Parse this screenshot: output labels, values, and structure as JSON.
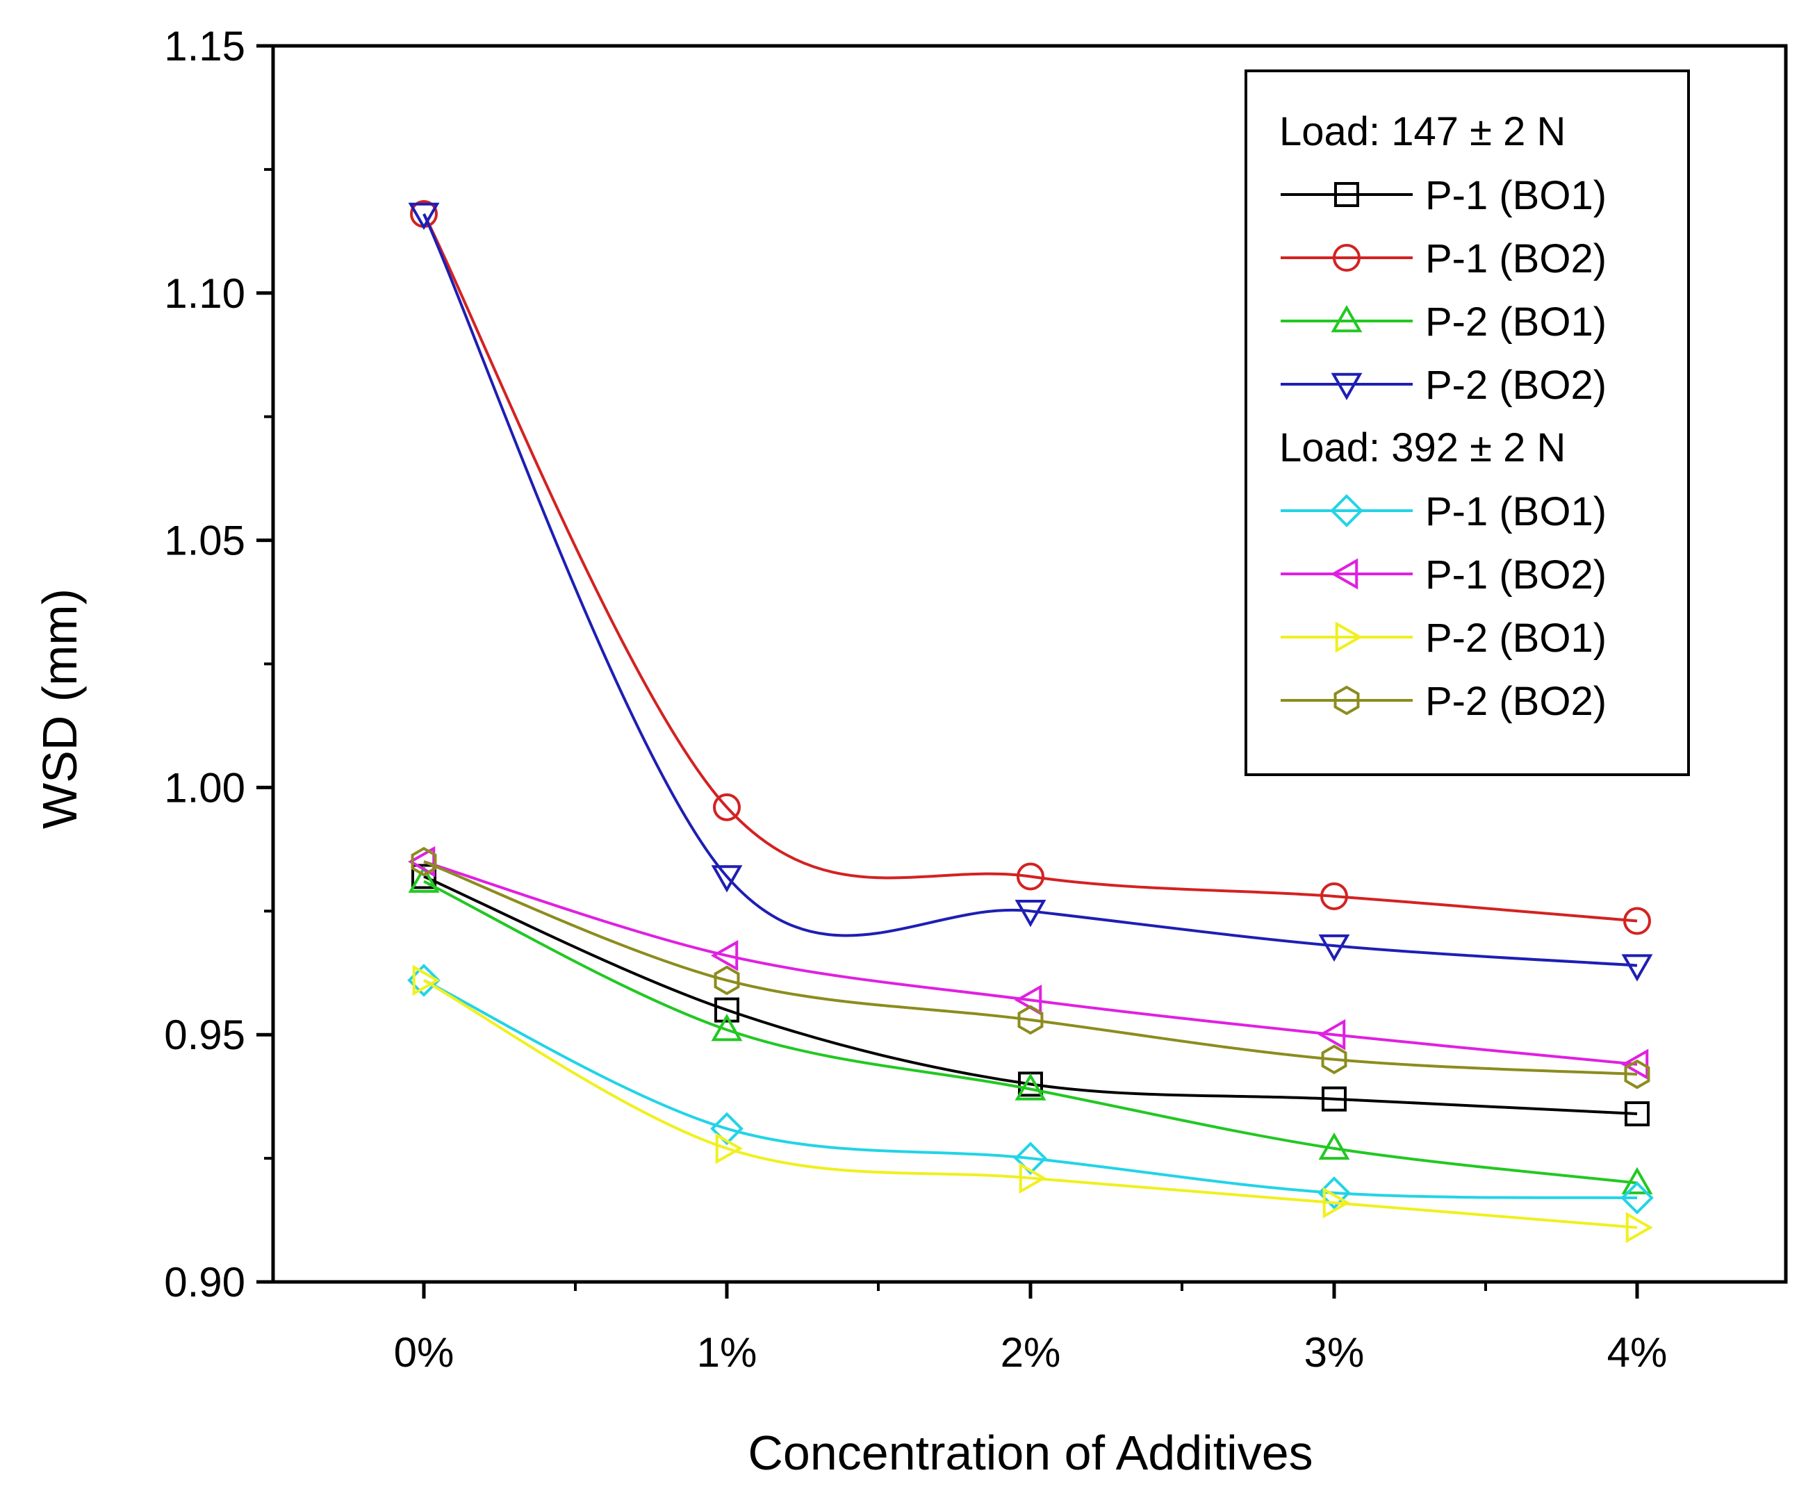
{
  "chart_data": {
    "type": "line",
    "title": "",
    "xlabel": "Concentration of Additives",
    "ylabel": "WSD (mm)",
    "categories": [
      "0%",
      "1%",
      "2%",
      "3%",
      "4%"
    ],
    "ylim": [
      0.9,
      1.15
    ],
    "yticks": [
      0.9,
      0.95,
      1.0,
      1.05,
      1.1,
      1.15
    ],
    "ytick_labels": [
      "0.90",
      "0.95",
      "1.00",
      "1.05",
      "1.10",
      "1.15"
    ],
    "grid": false,
    "legend_position": "top-right",
    "legend_groups": [
      {
        "heading": "Load: 147 ± 2 N",
        "series_indices": [
          0,
          1,
          2,
          3
        ]
      },
      {
        "heading": "Load: 392 ± 2 N",
        "series_indices": [
          4,
          5,
          6,
          7
        ]
      }
    ],
    "series": [
      {
        "name": "P-1 (BO1)",
        "load": "147 ± 2 N",
        "color": "#000000",
        "marker": "square",
        "values": [
          0.982,
          0.955,
          0.94,
          0.937,
          0.934
        ]
      },
      {
        "name": "P-1 (BO2)",
        "load": "147 ± 2 N",
        "color": "#d32222",
        "marker": "circle",
        "values": [
          1.116,
          0.996,
          0.982,
          0.978,
          0.973
        ]
      },
      {
        "name": "P-2 (BO1)",
        "load": "147 ± 2 N",
        "color": "#22c822",
        "marker": "triangle-up",
        "values": [
          0.981,
          0.951,
          0.939,
          0.927,
          0.92
        ]
      },
      {
        "name": "P-2 (BO2)",
        "load": "147 ± 2 N",
        "color": "#1e1eb4",
        "marker": "triangle-down",
        "values": [
          1.116,
          0.982,
          0.975,
          0.968,
          0.964
        ]
      },
      {
        "name": "P-1 (BO1)",
        "load": "392 ± 2 N",
        "color": "#22d4e6",
        "marker": "diamond",
        "values": [
          0.961,
          0.931,
          0.925,
          0.918,
          0.917
        ]
      },
      {
        "name": "P-1 (BO2)",
        "load": "392 ± 2 N",
        "color": "#e020e0",
        "marker": "triangle-left",
        "values": [
          0.985,
          0.966,
          0.957,
          0.95,
          0.944
        ]
      },
      {
        "name": "P-2 (BO1)",
        "load": "392 ± 2 N",
        "color": "#f0f020",
        "marker": "triangle-right",
        "values": [
          0.961,
          0.927,
          0.921,
          0.916,
          0.911
        ]
      },
      {
        "name": "P-2 (BO2)",
        "load": "392 ± 2 N",
        "color": "#8c8c1e",
        "marker": "hexagon",
        "values": [
          0.985,
          0.961,
          0.953,
          0.945,
          0.942
        ]
      }
    ]
  }
}
